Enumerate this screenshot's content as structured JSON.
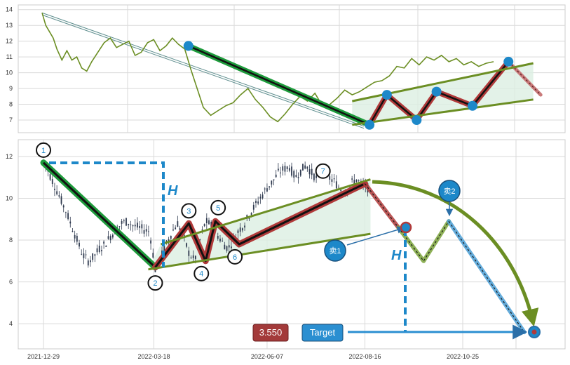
{
  "chart_data": [
    {
      "type": "line",
      "title": "",
      "xlabel": "",
      "ylabel": "",
      "ylim": [
        6.2,
        14.3
      ],
      "yticks": [
        7,
        8,
        9,
        10,
        11,
        12,
        13,
        14
      ],
      "grid": true,
      "series": [
        {
          "style": "price-line",
          "x": [
            0,
            3,
            6,
            9,
            12,
            16,
            20,
            24,
            28,
            32,
            36,
            40,
            45,
            50,
            55,
            60,
            65,
            70,
            75,
            80,
            85,
            90,
            95,
            100,
            105,
            110,
            115,
            120,
            125,
            130,
            136,
            142,
            148,
            154,
            160,
            166,
            172,
            178,
            184,
            190,
            196,
            202,
            208,
            214,
            220,
            226,
            232,
            238,
            244,
            250,
            256,
            262,
            268,
            274,
            280,
            286,
            292,
            298,
            304,
            310,
            316,
            322,
            328,
            334,
            340,
            346,
            352,
            358,
            364
          ],
          "y": [
            13.8,
            13.0,
            12.6,
            12.2,
            11.5,
            10.8,
            11.4,
            10.8,
            11.0,
            10.3,
            10.1,
            10.7,
            11.3,
            11.9,
            12.2,
            11.6,
            11.8,
            12.0,
            11.1,
            11.3,
            11.9,
            12.1,
            11.4,
            11.7,
            12.2,
            11.8,
            11.5,
            10.2,
            9.0,
            7.8,
            7.3,
            7.6,
            7.9,
            8.1,
            8.6,
            9.0,
            8.3,
            7.8,
            7.2,
            6.9,
            7.4,
            8.0,
            8.5,
            8.2,
            8.7,
            7.9,
            8.0,
            8.4,
            8.9,
            8.6,
            8.8,
            9.1,
            9.4,
            9.5,
            9.8,
            10.4,
            10.3,
            10.9,
            10.5,
            11.0,
            10.8,
            11.1,
            10.7,
            10.9,
            10.5,
            10.7,
            10.4,
            10.6,
            10.7
          ],
          "color": "#6b8e23"
        },
        {
          "style": "thick-line",
          "x": [
            264,
            278,
            302,
            318,
            347,
            376
          ],
          "y": [
            6.7,
            8.6,
            7.0,
            8.8,
            7.9,
            10.7
          ],
          "color": "#b03a3a"
        },
        {
          "style": "thick-line",
          "x": [
            118,
            264
          ],
          "y": [
            11.7,
            6.7
          ],
          "color": "#1e9b3c"
        },
        {
          "style": "dashed-line",
          "x": [
            376,
            402
          ],
          "y": [
            10.7,
            8.6
          ],
          "color": "#b03a3a"
        },
        {
          "style": "trend-line",
          "x": [
            250,
            396
          ],
          "y": [
            8.2,
            10.6
          ],
          "color": "#6b8e23"
        },
        {
          "style": "trend-line",
          "x": [
            250,
            396
          ],
          "y": [
            6.7,
            8.3
          ],
          "color": "#6b8e23"
        }
      ],
      "points": [
        {
          "x": 118,
          "y": 11.7
        },
        {
          "x": 264,
          "y": 6.7
        },
        {
          "x": 278,
          "y": 8.6
        },
        {
          "x": 302,
          "y": 7.0
        },
        {
          "x": 318,
          "y": 8.8
        },
        {
          "x": 347,
          "y": 7.9
        },
        {
          "x": 376,
          "y": 10.7
        }
      ]
    },
    {
      "type": "candlestick",
      "title": "",
      "xlabel": "",
      "ylabel": "",
      "ylim": [
        2.8,
        12.8
      ],
      "yticks": [
        4,
        6,
        8,
        10,
        12
      ],
      "grid": true,
      "xticks": [
        {
          "x": 0,
          "label": "2021-12-29"
        },
        {
          "x": 79,
          "label": "2022-03-18"
        },
        {
          "x": 160,
          "label": "2022-06-07"
        },
        {
          "x": 230,
          "label": "2022-08-16"
        },
        {
          "x": 300,
          "label": "2022-10-25"
        }
      ],
      "xlim": [
        -8,
        370
      ],
      "price_path": {
        "x": [
          0,
          4,
          8,
          12,
          16,
          20,
          24,
          28,
          32,
          36,
          40,
          44,
          48,
          52,
          56,
          60,
          64,
          68,
          72,
          76,
          80,
          84,
          88,
          92,
          96,
          100,
          104,
          108,
          112,
          116,
          120,
          124,
          128,
          132,
          136,
          140,
          144,
          148,
          152,
          156,
          160,
          164,
          168,
          172,
          176,
          180,
          184,
          188,
          192,
          196,
          200,
          204,
          208,
          212,
          216,
          220,
          224,
          228,
          232
        ],
        "y": [
          11.8,
          11.2,
          10.6,
          10.0,
          9.4,
          8.7,
          8.0,
          7.3,
          7.0,
          7.2,
          7.6,
          7.8,
          8.2,
          8.5,
          8.8,
          8.9,
          8.7,
          8.6,
          8.5,
          8.4,
          6.6,
          7.2,
          7.8,
          8.4,
          8.8,
          8.2,
          7.4,
          7.0,
          8.0,
          8.9,
          8.7,
          8.3,
          7.9,
          7.6,
          8.0,
          8.5,
          8.8,
          9.3,
          9.7,
          10.1,
          10.5,
          10.8,
          11.2,
          11.4,
          11.5,
          11.0,
          11.3,
          11.6,
          11.2,
          10.9,
          11.5,
          11.0,
          10.8,
          10.5,
          10.3,
          10.7,
          10.9,
          10.6,
          10.5
        ]
      },
      "series": [
        {
          "style": "thick-line",
          "x": [
            0,
            80
          ],
          "y": [
            11.7,
            6.7
          ],
          "color": "#1e9b3c"
        },
        {
          "style": "thick-line",
          "x": [
            80,
            104,
            116,
            123,
            140,
            230
          ],
          "y": [
            6.7,
            8.8,
            7.0,
            8.9,
            7.8,
            10.7
          ],
          "color": "#b03a3a"
        },
        {
          "style": "trend-line",
          "x": [
            84,
            234
          ],
          "y": [
            7.8,
            10.9
          ],
          "color": "#6b8e23"
        },
        {
          "style": "trend-line",
          "x": [
            75,
            234
          ],
          "y": [
            6.6,
            8.3
          ],
          "color": "#6b8e23"
        },
        {
          "style": "dashed-line",
          "x": [
            230,
            254
          ],
          "y": [
            10.7,
            8.6
          ],
          "color": "#b03a3a"
        },
        {
          "style": "dashed-line",
          "x": [
            254,
            272,
            290
          ],
          "y": [
            8.6,
            7.0,
            8.9
          ],
          "color": "#7aa33a"
        },
        {
          "style": "dashed-line",
          "x": [
            290,
            344
          ],
          "y": [
            8.9,
            3.6
          ],
          "color": "#4a9fd6"
        }
      ],
      "markers": [
        {
          "label": "1",
          "x": 0,
          "y": 12.3
        },
        {
          "label": "2",
          "x": 80,
          "y": 5.95
        },
        {
          "label": "3",
          "x": 104,
          "y": 9.4
        },
        {
          "label": "4",
          "x": 113,
          "y": 6.4
        },
        {
          "label": "5",
          "x": 125,
          "y": 9.55
        },
        {
          "label": "6",
          "x": 137,
          "y": 7.2
        },
        {
          "label": "7",
          "x": 200,
          "y": 11.3
        }
      ],
      "annotations": {
        "h_label_1": "H",
        "h_label_2": "H",
        "sell_1": "卖1",
        "sell_2": "卖2",
        "price_badge": "3.550",
        "target_badge": "Target"
      }
    }
  ],
  "colors": {
    "grid": "#d9d9d9",
    "frame": "#cccccc",
    "zone_fill": "#dcefe2",
    "candle": "#2f3a4f",
    "blue": "#1d88c9",
    "arc": "#6b8e23",
    "badge_red": "#a33a3a",
    "badge_blue": "#2b8fd1"
  }
}
